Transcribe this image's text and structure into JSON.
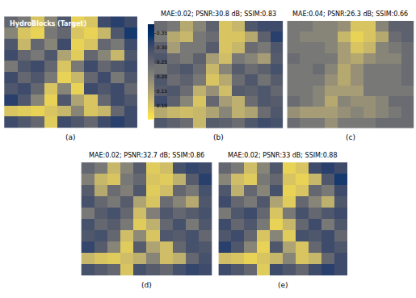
{
  "chart_data": [
    {
      "type": "heatmap",
      "title": "HydroBlocks (Target)",
      "label": "(a)",
      "tick_labels": false,
      "colorbar_range": [
        0.05,
        0.38
      ],
      "colorbar_ticks": [
        {
          "value": 0.1,
          "label": "0.10"
        },
        {
          "value": 0.15,
          "label": "0.15"
        },
        {
          "value": 0.2,
          "label": "0.20"
        },
        {
          "value": 0.25,
          "label": "0.25"
        },
        {
          "value": 0.3,
          "label": "0.30"
        },
        {
          "value": 0.35,
          "label": "0.35"
        }
      ],
      "cells": [
        [
          0.25,
          0.22,
          0.1,
          0.2,
          0.28,
          0.08,
          0.1,
          0.3,
          0.32,
          0.3
        ],
        [
          0.2,
          0.1,
          0.08,
          0.22,
          0.25,
          0.1,
          0.08,
          0.12,
          0.28,
          0.33
        ],
        [
          0.28,
          0.12,
          0.25,
          0.2,
          0.3,
          0.08,
          0.1,
          0.25,
          0.22,
          0.3
        ],
        [
          0.3,
          0.25,
          0.22,
          0.28,
          0.15,
          0.09,
          0.25,
          0.2,
          0.12,
          0.28
        ],
        [
          0.22,
          0.28,
          0.3,
          0.25,
          0.1,
          0.22,
          0.3,
          0.25,
          0.28,
          0.3
        ],
        [
          0.3,
          0.25,
          0.28,
          0.22,
          0.08,
          0.12,
          0.25,
          0.3,
          0.22,
          0.28
        ],
        [
          0.28,
          0.3,
          0.25,
          0.1,
          0.2,
          0.08,
          0.3,
          0.28,
          0.3,
          0.25
        ],
        [
          0.32,
          0.28,
          0.2,
          0.08,
          0.28,
          0.15,
          0.1,
          0.25,
          0.3,
          0.28
        ],
        [
          0.1,
          0.09,
          0.08,
          0.1,
          0.12,
          0.2,
          0.1,
          0.12,
          0.25,
          0.3
        ],
        [
          0.3,
          0.28,
          0.25,
          0.09,
          0.3,
          0.28,
          0.25,
          0.3,
          0.32,
          0.3
        ]
      ]
    },
    {
      "type": "heatmap",
      "title": "MAE:0.02; PSNR:30.8 dB; SSIM:0.83",
      "label": "(b)",
      "tick_labels": false,
      "cells": [
        [
          0.24,
          0.22,
          0.14,
          0.2,
          0.26,
          0.1,
          0.12,
          0.28,
          0.3,
          0.3
        ],
        [
          0.22,
          0.14,
          0.12,
          0.22,
          0.24,
          0.1,
          0.1,
          0.14,
          0.26,
          0.32
        ],
        [
          0.26,
          0.16,
          0.22,
          0.22,
          0.27,
          0.1,
          0.12,
          0.24,
          0.22,
          0.28
        ],
        [
          0.28,
          0.24,
          0.22,
          0.26,
          0.16,
          0.11,
          0.22,
          0.2,
          0.16,
          0.27
        ],
        [
          0.23,
          0.26,
          0.28,
          0.24,
          0.12,
          0.2,
          0.27,
          0.24,
          0.26,
          0.29
        ],
        [
          0.28,
          0.24,
          0.26,
          0.22,
          0.1,
          0.14,
          0.24,
          0.28,
          0.23,
          0.27
        ],
        [
          0.27,
          0.28,
          0.24,
          0.13,
          0.18,
          0.11,
          0.27,
          0.26,
          0.28,
          0.25
        ],
        [
          0.3,
          0.26,
          0.2,
          0.1,
          0.25,
          0.16,
          0.13,
          0.24,
          0.28,
          0.27
        ],
        [
          0.14,
          0.12,
          0.11,
          0.12,
          0.15,
          0.2,
          0.13,
          0.15,
          0.24,
          0.28
        ],
        [
          0.28,
          0.26,
          0.24,
          0.12,
          0.27,
          0.26,
          0.24,
          0.28,
          0.3,
          0.29
        ]
      ]
    },
    {
      "type": "heatmap",
      "title": "MAE:0.04; PSNR:26.3 dB; SSIM:0.66",
      "label": "(c)",
      "tick_labels": false,
      "cells": [
        [
          0.22,
          0.22,
          0.2,
          0.2,
          0.18,
          0.1,
          0.1,
          0.2,
          0.26,
          0.26
        ],
        [
          0.22,
          0.2,
          0.2,
          0.2,
          0.12,
          0.08,
          0.1,
          0.14,
          0.24,
          0.26
        ],
        [
          0.22,
          0.22,
          0.22,
          0.2,
          0.16,
          0.1,
          0.12,
          0.2,
          0.22,
          0.24
        ],
        [
          0.24,
          0.22,
          0.22,
          0.22,
          0.16,
          0.14,
          0.18,
          0.2,
          0.2,
          0.24
        ],
        [
          0.22,
          0.22,
          0.24,
          0.2,
          0.14,
          0.18,
          0.22,
          0.22,
          0.22,
          0.24
        ],
        [
          0.22,
          0.22,
          0.22,
          0.18,
          0.14,
          0.18,
          0.22,
          0.22,
          0.22,
          0.24
        ],
        [
          0.22,
          0.22,
          0.2,
          0.16,
          0.16,
          0.16,
          0.22,
          0.22,
          0.22,
          0.22
        ],
        [
          0.24,
          0.22,
          0.2,
          0.14,
          0.2,
          0.18,
          0.18,
          0.2,
          0.24,
          0.24
        ],
        [
          0.18,
          0.16,
          0.16,
          0.16,
          0.18,
          0.2,
          0.18,
          0.2,
          0.22,
          0.24
        ],
        [
          0.24,
          0.22,
          0.22,
          0.18,
          0.22,
          0.22,
          0.22,
          0.24,
          0.24,
          0.24
        ]
      ]
    },
    {
      "type": "heatmap",
      "title": "MAE:0.02; PSNR:32.7 dB; SSIM:0.86",
      "label": "(d)",
      "tick_labels": false,
      "cells": [
        [
          0.25,
          0.22,
          0.12,
          0.2,
          0.27,
          0.09,
          0.11,
          0.29,
          0.31,
          0.3
        ],
        [
          0.21,
          0.12,
          0.1,
          0.22,
          0.25,
          0.1,
          0.09,
          0.13,
          0.27,
          0.32
        ],
        [
          0.27,
          0.14,
          0.24,
          0.21,
          0.28,
          0.09,
          0.11,
          0.25,
          0.22,
          0.29
        ],
        [
          0.29,
          0.25,
          0.22,
          0.27,
          0.15,
          0.1,
          0.24,
          0.2,
          0.14,
          0.28
        ],
        [
          0.22,
          0.27,
          0.29,
          0.25,
          0.11,
          0.21,
          0.28,
          0.25,
          0.27,
          0.29
        ],
        [
          0.29,
          0.25,
          0.27,
          0.22,
          0.09,
          0.13,
          0.25,
          0.29,
          0.22,
          0.28
        ],
        [
          0.28,
          0.29,
          0.25,
          0.11,
          0.19,
          0.1,
          0.28,
          0.27,
          0.29,
          0.25
        ],
        [
          0.31,
          0.27,
          0.2,
          0.09,
          0.27,
          0.15,
          0.11,
          0.25,
          0.29,
          0.28
        ],
        [
          0.12,
          0.1,
          0.09,
          0.11,
          0.13,
          0.2,
          0.11,
          0.13,
          0.25,
          0.29
        ],
        [
          0.29,
          0.27,
          0.25,
          0.1,
          0.29,
          0.27,
          0.25,
          0.29,
          0.31,
          0.3
        ]
      ]
    },
    {
      "type": "heatmap",
      "title": "MAE:0.02; PSNR:33 dB; SSIM:0.88",
      "label": "(e)",
      "tick_labels": false,
      "cells": [
        [
          0.25,
          0.22,
          0.11,
          0.2,
          0.28,
          0.08,
          0.1,
          0.3,
          0.32,
          0.3
        ],
        [
          0.2,
          0.11,
          0.09,
          0.22,
          0.25,
          0.1,
          0.08,
          0.12,
          0.28,
          0.33
        ],
        [
          0.28,
          0.13,
          0.25,
          0.2,
          0.29,
          0.08,
          0.1,
          0.25,
          0.22,
          0.3
        ],
        [
          0.3,
          0.25,
          0.22,
          0.28,
          0.15,
          0.09,
          0.25,
          0.2,
          0.13,
          0.28
        ],
        [
          0.22,
          0.28,
          0.3,
          0.25,
          0.1,
          0.22,
          0.29,
          0.25,
          0.28,
          0.3
        ],
        [
          0.3,
          0.25,
          0.28,
          0.22,
          0.08,
          0.12,
          0.25,
          0.3,
          0.22,
          0.28
        ],
        [
          0.28,
          0.3,
          0.25,
          0.1,
          0.2,
          0.09,
          0.29,
          0.28,
          0.3,
          0.25
        ],
        [
          0.32,
          0.28,
          0.2,
          0.08,
          0.28,
          0.15,
          0.1,
          0.25,
          0.3,
          0.28
        ],
        [
          0.11,
          0.1,
          0.08,
          0.1,
          0.12,
          0.2,
          0.1,
          0.12,
          0.25,
          0.3
        ],
        [
          0.3,
          0.28,
          0.25,
          0.09,
          0.3,
          0.28,
          0.25,
          0.3,
          0.32,
          0.3
        ]
      ]
    }
  ]
}
